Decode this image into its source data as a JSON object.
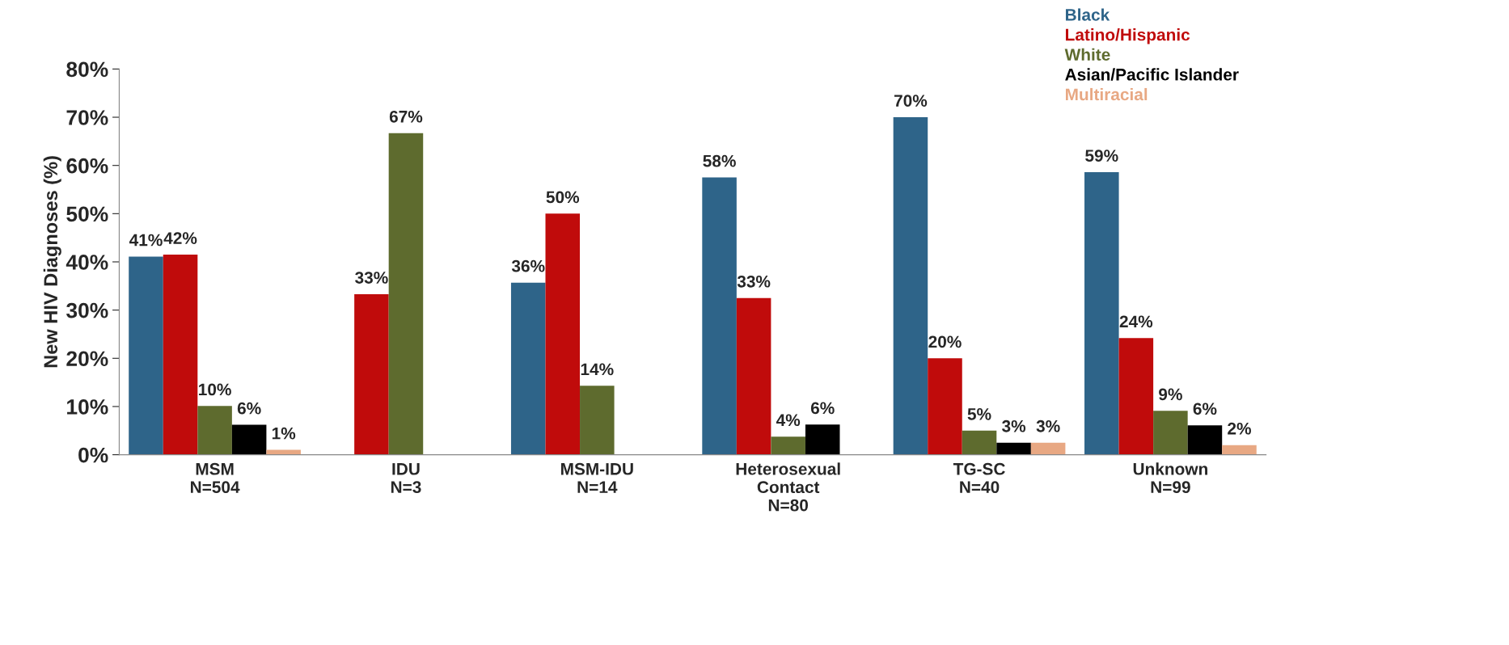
{
  "chart_data": {
    "type": "bar",
    "ylabel": "New HIV Diagnoses (%)",
    "categories": [
      "MSM\nN=504",
      "IDU\nN=3",
      "MSM-IDU\nN=14",
      "Heterosexual\nContact\nN=80",
      "TG-SC\nN=40",
      "Unknown\nN=99"
    ],
    "series": [
      {
        "name": "Black",
        "color": "#2e6489",
        "values": [
          41.1,
          null,
          35.7,
          57.5,
          70,
          58.6
        ],
        "value_labels": [
          "41%",
          null,
          "36%",
          "58%",
          "70%",
          "59%"
        ]
      },
      {
        "name": "Latino/Hispanic",
        "color": "#c00b0b",
        "values": [
          41.5,
          33.3,
          50,
          32.5,
          20,
          24.2
        ],
        "value_labels": [
          "42%",
          "33%",
          "50%",
          "33%",
          "20%",
          "24%"
        ]
      },
      {
        "name": "White",
        "color": "#5e6b2e",
        "values": [
          10.1,
          66.7,
          14.3,
          3.75,
          5,
          9.1
        ],
        "value_labels": [
          "10%",
          "67%",
          "14%",
          "4%",
          "5%",
          "9%"
        ]
      },
      {
        "name": "Asian/Pacific Islander",
        "color": "#000000",
        "values": [
          6.2,
          null,
          null,
          6.25,
          2.5,
          6.1
        ],
        "value_labels": [
          "6%",
          null,
          null,
          "6%",
          "3%",
          "6%"
        ]
      },
      {
        "name": "Multiracial",
        "color": "#e8a883",
        "values": [
          1.0,
          null,
          null,
          null,
          2.5,
          2.0
        ],
        "value_labels": [
          "1%",
          null,
          null,
          null,
          "3%",
          "2%"
        ]
      }
    ],
    "ylim": [
      0,
      80
    ],
    "yticks": [
      {
        "value": 0,
        "label": "0%"
      },
      {
        "value": 10,
        "label": "10%"
      },
      {
        "value": 20,
        "label": "20%"
      },
      {
        "value": 30,
        "label": "30%"
      },
      {
        "value": 40,
        "label": "40%"
      },
      {
        "value": 50,
        "label": "50%"
      },
      {
        "value": 60,
        "label": "60%"
      },
      {
        "value": 70,
        "label": "70%"
      },
      {
        "value": 80,
        "label": "80%"
      }
    ],
    "grid": false,
    "legend": "top right"
  }
}
